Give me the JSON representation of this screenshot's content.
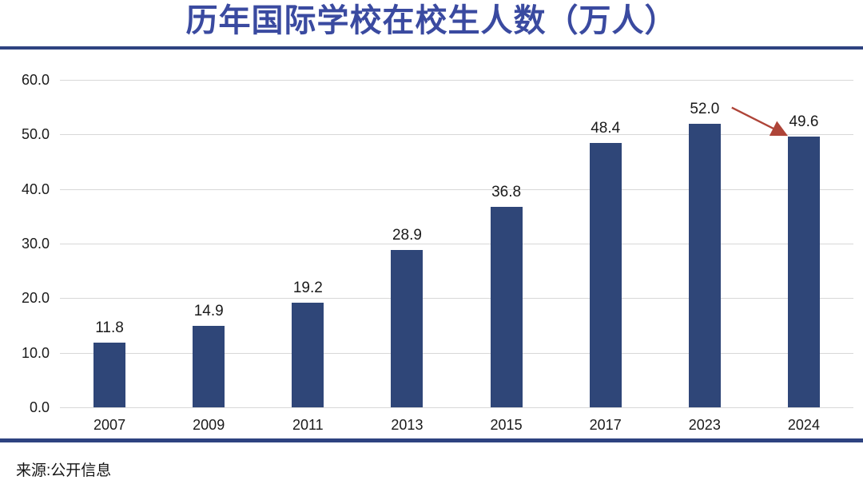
{
  "title": "历年国际学校在校生人数（万人）",
  "source": "来源:公开信息",
  "colors": {
    "title": "#3A4AA0",
    "bar": "#2F4678",
    "divider": "#2E4380",
    "grid": "#D8D8D8",
    "axis_text": "#1A1A1A",
    "arrow": "#AE4438"
  },
  "chart_data": {
    "type": "bar",
    "title": "历年国际学校在校生人数（万人）",
    "categories": [
      "2007",
      "2009",
      "2011",
      "2013",
      "2015",
      "2017",
      "2023",
      "2024"
    ],
    "values": [
      11.8,
      14.9,
      19.2,
      28.9,
      36.8,
      48.4,
      52.0,
      49.6
    ],
    "value_labels": [
      "11.8",
      "14.9",
      "19.2",
      "28.9",
      "36.8",
      "48.4",
      "52.0",
      "49.6"
    ],
    "xlabel": "",
    "ylabel": "",
    "ylim": [
      0,
      60
    ],
    "yticks": [
      "0.0",
      "10.0",
      "20.0",
      "30.0",
      "40.0",
      "50.0",
      "60.0"
    ],
    "grid": true,
    "legend": false,
    "annotation": {
      "type": "arrow",
      "from_value": "52.0",
      "to_value": "49.6",
      "note": "decline from 2023 peak to 2024",
      "color": "#AE4438"
    },
    "source": "来源:公开信息"
  }
}
